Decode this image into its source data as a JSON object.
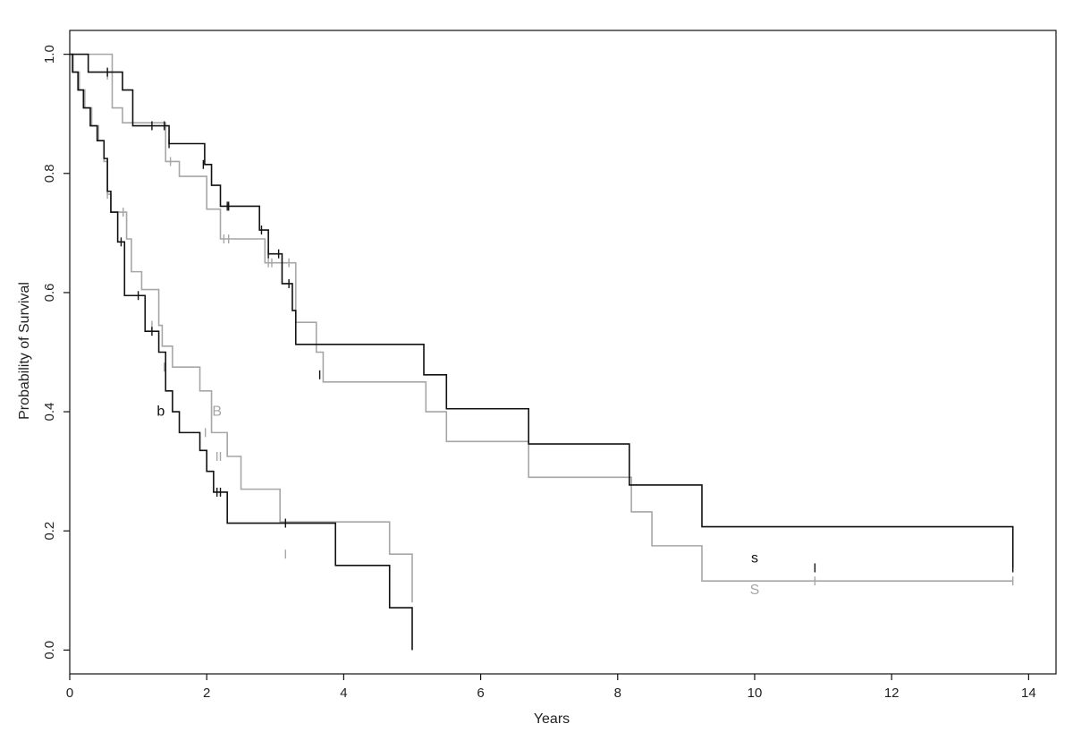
{
  "chart_data": {
    "type": "line",
    "title": "",
    "xlabel": "Years",
    "ylabel": "Probability of Survival",
    "xlim": [
      0,
      14.4
    ],
    "ylim": [
      -0.04,
      1.04
    ],
    "xticks": [
      0,
      2,
      4,
      6,
      8,
      10,
      12,
      14
    ],
    "xtick_labels": [
      "0",
      "2",
      "4",
      "6",
      "8",
      "10",
      "12",
      "14"
    ],
    "yticks": [
      0.0,
      0.2,
      0.4,
      0.6,
      0.8,
      1.0
    ],
    "ytick_labels": [
      "0.0",
      "0.2",
      "0.4",
      "0.6",
      "0.8",
      "1.0"
    ],
    "grid": false,
    "colors": {
      "black_curves": "#111111",
      "gray_curves": "#a6a6a6"
    },
    "series": [
      {
        "name": "s",
        "color": "#111111",
        "x": [
          0,
          0.27,
          0.77,
          0.92,
          1.45,
          1.97,
          2.07,
          2.2,
          2.77,
          2.9,
          3.1,
          3.25,
          3.3,
          5.17,
          5.5,
          6.7,
          8.17,
          9.23,
          13.77
        ],
        "y": [
          1.0,
          0.97,
          0.94,
          0.88,
          0.85,
          0.815,
          0.78,
          0.745,
          0.705,
          0.665,
          0.615,
          0.57,
          0.513,
          0.462,
          0.405,
          0.346,
          0.277,
          0.207,
          0.138
        ],
        "censor_x": [
          0.55,
          1.2,
          1.38,
          1.45,
          1.95,
          2.3,
          2.32,
          2.8,
          2.9,
          3.05,
          3.2,
          3.65,
          10.88,
          13.77
        ],
        "censor_y": [
          0.97,
          0.88,
          0.88,
          0.85,
          0.815,
          0.745,
          0.745,
          0.705,
          0.665,
          0.665,
          0.615,
          0.462,
          0.138,
          0.138
        ],
        "label_x": 10.0,
        "label_y": 0.153
      },
      {
        "name": "S",
        "color": "#a6a6a6",
        "x": [
          0,
          0.62,
          0.77,
          1.4,
          1.6,
          2.0,
          2.2,
          2.85,
          3.3,
          3.6,
          3.7,
          5.2,
          5.5,
          6.7,
          8.2,
          8.5,
          9.23,
          13.77
        ],
        "y": [
          1.0,
          0.91,
          0.885,
          0.82,
          0.795,
          0.74,
          0.69,
          0.65,
          0.55,
          0.5,
          0.45,
          0.4,
          0.35,
          0.29,
          0.232,
          0.175,
          0.116,
          0.116
        ],
        "censor_x": [
          0.55,
          1.47,
          2.25,
          2.32,
          2.9,
          2.95,
          3.2,
          10.88,
          13.77
        ],
        "censor_y": [
          0.965,
          0.82,
          0.69,
          0.69,
          0.65,
          0.65,
          0.65,
          0.116,
          0.116
        ],
        "label_x": 10.0,
        "label_y": 0.1
      },
      {
        "name": "b",
        "color": "#111111",
        "x": [
          0,
          0.04,
          0.12,
          0.2,
          0.3,
          0.4,
          0.5,
          0.55,
          0.6,
          0.7,
          0.8,
          0.95,
          1.1,
          1.3,
          1.4,
          1.5,
          1.6,
          1.9,
          2.0,
          2.1,
          2.3,
          3.88,
          4.67,
          5.0
        ],
        "y": [
          1.0,
          0.97,
          0.94,
          0.91,
          0.88,
          0.855,
          0.825,
          0.77,
          0.735,
          0.685,
          0.595,
          0.595,
          0.535,
          0.5,
          0.435,
          0.4,
          0.365,
          0.335,
          0.3,
          0.265,
          0.213,
          0.142,
          0.071,
          0.0
        ],
        "censor_x": [
          0.75,
          1.0,
          1.2,
          2.15,
          2.2,
          3.15
        ],
        "censor_y": [
          0.685,
          0.595,
          0.535,
          0.265,
          0.265,
          0.213
        ],
        "label_x": 1.33,
        "label_y": 0.4
      },
      {
        "name": "B",
        "color": "#a6a6a6",
        "x": [
          0,
          0.05,
          0.14,
          0.22,
          0.32,
          0.42,
          0.5,
          0.55,
          0.6,
          0.83,
          0.9,
          1.05,
          1.3,
          1.35,
          1.5,
          1.9,
          2.07,
          2.3,
          2.5,
          3.07,
          4.67,
          5.0
        ],
        "y": [
          1.0,
          0.97,
          0.94,
          0.91,
          0.88,
          0.855,
          0.82,
          0.765,
          0.735,
          0.69,
          0.635,
          0.605,
          0.545,
          0.51,
          0.475,
          0.435,
          0.365,
          0.325,
          0.27,
          0.215,
          0.161,
          0.08
        ],
        "censor_x": [
          0.55,
          0.78,
          1.2,
          1.38,
          1.98,
          2.15,
          2.2,
          3.15
        ],
        "censor_y": [
          0.765,
          0.735,
          0.545,
          0.475,
          0.365,
          0.325,
          0.325,
          0.161
        ],
        "label_x": 2.15,
        "label_y": 0.4
      }
    ]
  }
}
